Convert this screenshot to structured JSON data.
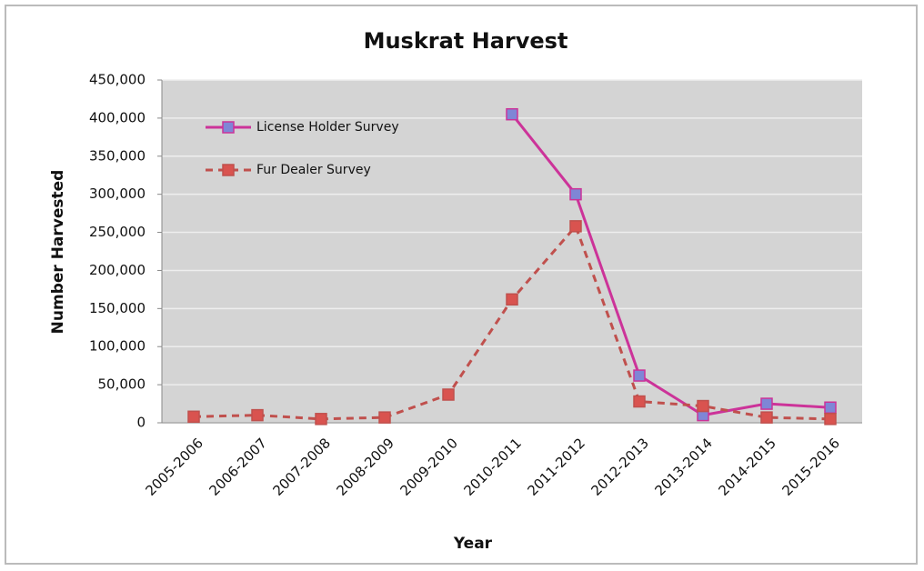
{
  "chart_data": {
    "type": "line",
    "title": "Muskrat Harvest",
    "x_label": "Year",
    "y_label": "Number Harvested",
    "categories": [
      "2005-2006",
      "2006-2007",
      "2007-2008",
      "2008-2009",
      "2009-2010",
      "2010-2011",
      "2011-2012",
      "2012-2013",
      "2013-2014",
      "2014-2015",
      "2015-2016"
    ],
    "series": [
      {
        "name": "License Holder Survey",
        "color": "#cc3399",
        "marker_color": "#7f86d6",
        "dashed": false,
        "values": [
          null,
          null,
          null,
          null,
          null,
          405000,
          300000,
          62000,
          10000,
          25000,
          20000
        ]
      },
      {
        "name": "Fur Dealer Survey",
        "color": "#c0504d",
        "marker_color": "#d9534f",
        "dashed": true,
        "values": [
          8000,
          10000,
          5000,
          7000,
          37000,
          162000,
          258000,
          28000,
          22000,
          7000,
          5000
        ]
      }
    ],
    "ylim": [
      0,
      450000
    ],
    "yticks": [
      0,
      {
        "value": 50000,
        "label": "50,000"
      },
      {
        "value": 100000,
        "label": "100,000"
      },
      {
        "value": 150000,
        "label": "150,000"
      },
      {
        "value": 200000,
        "label": "200,000"
      },
      {
        "value": 250000,
        "label": "250,000"
      },
      {
        "value": 300000,
        "label": "300,000"
      },
      {
        "value": 350000,
        "label": "350,000"
      },
      {
        "value": 400000,
        "label": "400,000"
      },
      {
        "value": 450000,
        "label": "450,000"
      }
    ],
    "grid": true,
    "legend": "upper left"
  }
}
